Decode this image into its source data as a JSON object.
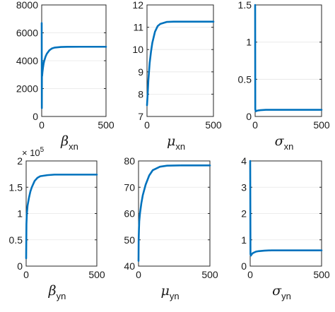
{
  "chart_data": [
    {
      "type": "line",
      "xlabel_symbol": "β",
      "xlabel_sub": "xn",
      "xlim": [
        0,
        500
      ],
      "ylim": [
        0,
        8000
      ],
      "xticks": [
        0,
        500
      ],
      "yticks": [
        0,
        2000,
        4000,
        6000,
        8000
      ],
      "ytick_labels": [
        "0",
        "2000",
        "4000",
        "6000",
        "8000"
      ],
      "y_exponent": "",
      "color": "#0072BD",
      "x": [
        0,
        1,
        2,
        3,
        4,
        6,
        10,
        15,
        20,
        30,
        40,
        60,
        80,
        100,
        150,
        200,
        300,
        400,
        500
      ],
      "y": [
        6700,
        600,
        4000,
        2900,
        3000,
        3200,
        3500,
        3800,
        4000,
        4300,
        4500,
        4750,
        4880,
        4940,
        4985,
        4995,
        5000,
        5000,
        5000
      ]
    },
    {
      "type": "line",
      "xlabel_symbol": "μ",
      "xlabel_sub": "xn",
      "xlim": [
        0,
        500
      ],
      "ylim": [
        7,
        12
      ],
      "xticks": [
        0,
        500
      ],
      "yticks": [
        7,
        8,
        9,
        10,
        11,
        12
      ],
      "ytick_labels": [
        "7",
        "8",
        "9",
        "10",
        "11",
        "12"
      ],
      "y_exponent": "",
      "color": "#0072BD",
      "x": [
        0,
        2,
        5,
        10,
        20,
        30,
        40,
        60,
        80,
        100,
        150,
        200,
        300,
        400,
        500
      ],
      "y": [
        7.5,
        7.7,
        8.0,
        8.6,
        9.4,
        9.9,
        10.3,
        10.8,
        11.05,
        11.15,
        11.24,
        11.25,
        11.25,
        11.25,
        11.25
      ]
    },
    {
      "type": "line",
      "xlabel_symbol": "σ",
      "xlabel_sub": "xn",
      "xlim": [
        0,
        500
      ],
      "ylim": [
        0,
        1.5
      ],
      "xticks": [
        0,
        500
      ],
      "yticks": [
        0,
        0.5,
        1,
        1.5
      ],
      "ytick_labels": [
        "0",
        "0.5",
        "1",
        "1.5"
      ],
      "y_exponent": "",
      "color": "#0072BD",
      "x": [
        0,
        1,
        3,
        5,
        10,
        20,
        40,
        80,
        150,
        300,
        500
      ],
      "y": [
        1.5,
        0.1,
        0.08,
        0.07,
        0.075,
        0.08,
        0.085,
        0.09,
        0.09,
        0.09,
        0.09
      ]
    },
    {
      "type": "line",
      "xlabel_symbol": "β",
      "xlabel_sub": "yn",
      "xlim": [
        0,
        500
      ],
      "ylim": [
        0,
        2
      ],
      "xticks": [
        0,
        500
      ],
      "yticks": [
        0,
        0.5,
        1,
        1.5,
        2
      ],
      "ytick_labels": [
        "0",
        "0.5",
        "1",
        "1.5",
        "2"
      ],
      "y_exponent": "× 10^5",
      "color": "#0072BD",
      "x": [
        0,
        2,
        5,
        10,
        20,
        30,
        40,
        60,
        80,
        100,
        150,
        200,
        300,
        400,
        500
      ],
      "y": [
        0.15,
        0.8,
        1.0,
        1.15,
        1.3,
        1.42,
        1.5,
        1.62,
        1.68,
        1.71,
        1.73,
        1.74,
        1.74,
        1.74,
        1.74
      ]
    },
    {
      "type": "line",
      "xlabel_symbol": "μ",
      "xlabel_sub": "yn",
      "xlim": [
        0,
        500
      ],
      "ylim": [
        40,
        80
      ],
      "xticks": [
        0,
        500
      ],
      "yticks": [
        40,
        50,
        60,
        70,
        80
      ],
      "ytick_labels": [
        "40",
        "50",
        "60",
        "70",
        "80"
      ],
      "y_exponent": "",
      "color": "#0072BD",
      "x": [
        0,
        1,
        3,
        5,
        10,
        20,
        30,
        50,
        75,
        100,
        150,
        200,
        300,
        400,
        500
      ],
      "y": [
        42,
        50,
        54,
        57,
        60,
        64,
        67,
        71,
        74.5,
        76.5,
        77.8,
        78.2,
        78.3,
        78.3,
        78.3
      ]
    },
    {
      "type": "line",
      "xlabel_symbol": "σ",
      "xlabel_sub": "yn",
      "xlim": [
        0,
        500
      ],
      "ylim": [
        0,
        4
      ],
      "xticks": [
        0,
        500
      ],
      "yticks": [
        0,
        1,
        2,
        3,
        4
      ],
      "ytick_labels": [
        "0",
        "1",
        "2",
        "3",
        "4"
      ],
      "y_exponent": "",
      "color": "#0072BD",
      "x": [
        0,
        2,
        5,
        10,
        20,
        40,
        60,
        100,
        150,
        200,
        300,
        400,
        500
      ],
      "y": [
        4,
        0.45,
        0.4,
        0.45,
        0.5,
        0.55,
        0.57,
        0.59,
        0.6,
        0.6,
        0.6,
        0.6,
        0.6
      ]
    }
  ]
}
